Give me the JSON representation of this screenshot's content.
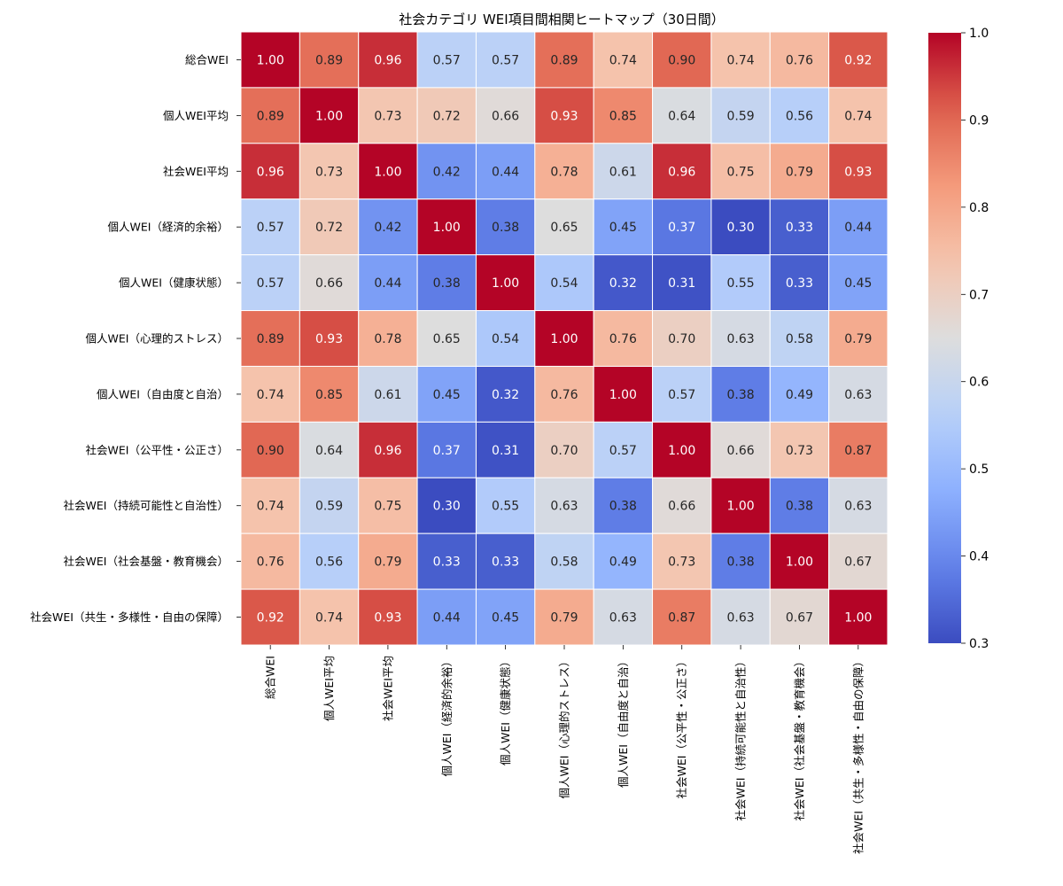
{
  "chart_data": {
    "type": "heatmap",
    "title": "社会カテゴリ WEI項目間相関ヒートマップ（30日間）",
    "xlabel": "",
    "ylabel": "",
    "labels": [
      "総合WEI",
      "個人WEI平均",
      "社会WEI平均",
      "個人WEI（経済的余裕）",
      "個人WEI（健康状態）",
      "個人WEI（心理的ストレス）",
      "個人WEI（自由度と自治）",
      "社会WEI（公平性・公正さ）",
      "社会WEI（持続可能性と自治性）",
      "社会WEI（社会基盤・教育機会）",
      "社会WEI（共生・多様性・自由の保障）"
    ],
    "matrix": [
      [
        1.0,
        0.89,
        0.96,
        0.57,
        0.57,
        0.89,
        0.74,
        0.9,
        0.74,
        0.76,
        0.92
      ],
      [
        0.89,
        1.0,
        0.73,
        0.72,
        0.66,
        0.93,
        0.85,
        0.64,
        0.59,
        0.56,
        0.74
      ],
      [
        0.96,
        0.73,
        1.0,
        0.42,
        0.44,
        0.78,
        0.61,
        0.96,
        0.75,
        0.79,
        0.93
      ],
      [
        0.57,
        0.72,
        0.42,
        1.0,
        0.38,
        0.65,
        0.45,
        0.37,
        0.3,
        0.33,
        0.44
      ],
      [
        0.57,
        0.66,
        0.44,
        0.38,
        1.0,
        0.54,
        0.32,
        0.31,
        0.55,
        0.33,
        0.45
      ],
      [
        0.89,
        0.93,
        0.78,
        0.65,
        0.54,
        1.0,
        0.76,
        0.7,
        0.63,
        0.58,
        0.79
      ],
      [
        0.74,
        0.85,
        0.61,
        0.45,
        0.32,
        0.76,
        1.0,
        0.57,
        0.38,
        0.49,
        0.63
      ],
      [
        0.9,
        0.64,
        0.96,
        0.37,
        0.31,
        0.7,
        0.57,
        1.0,
        0.66,
        0.73,
        0.87
      ],
      [
        0.74,
        0.59,
        0.75,
        0.3,
        0.55,
        0.63,
        0.38,
        0.66,
        1.0,
        0.38,
        0.63
      ],
      [
        0.76,
        0.56,
        0.79,
        0.33,
        0.33,
        0.58,
        0.49,
        0.73,
        0.38,
        1.0,
        0.67
      ],
      [
        0.92,
        0.74,
        0.93,
        0.44,
        0.45,
        0.79,
        0.63,
        0.87,
        0.63,
        0.67,
        1.0
      ]
    ],
    "colormap": "coolwarm",
    "vmin": 0.3,
    "vmax": 1.0,
    "colorbar_ticks": [
      "0.3",
      "0.4",
      "0.5",
      "0.6",
      "0.7",
      "0.8",
      "0.9",
      "1.0"
    ],
    "annotated": true,
    "grid": false,
    "legend": "colorbar-right"
  }
}
